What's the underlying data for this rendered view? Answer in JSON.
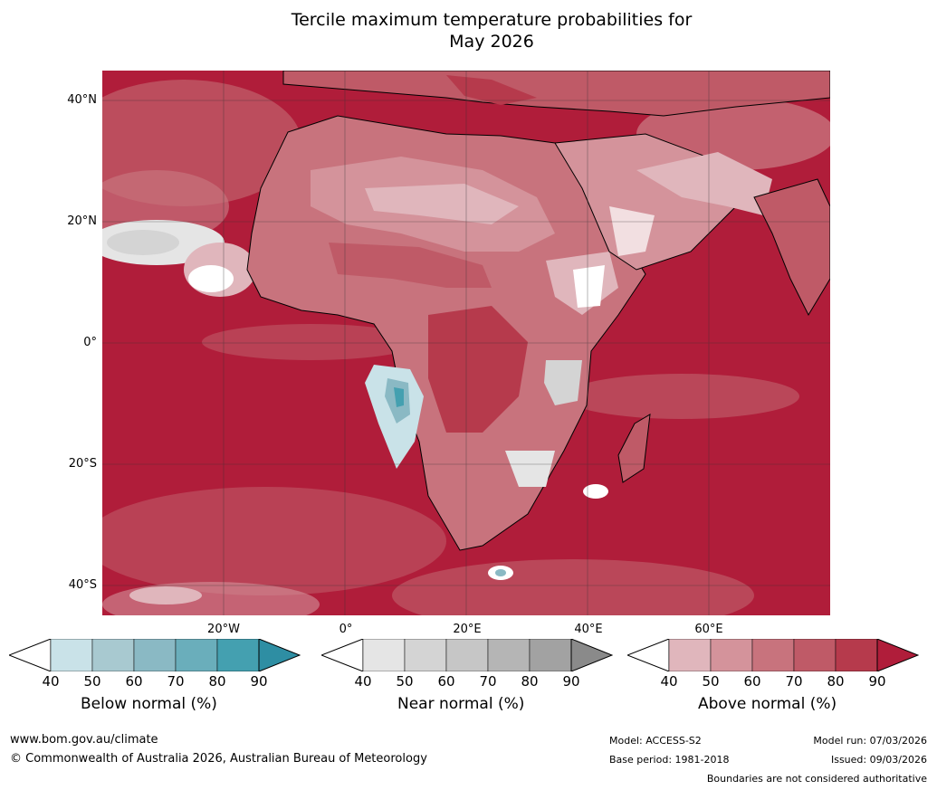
{
  "title": {
    "line1": "Tercile maximum temperature probabilities for",
    "line2": "May 2026"
  },
  "map": {
    "lat_labels": [
      "40°N",
      "20°N",
      "0°",
      "20°S",
      "40°S"
    ],
    "lon_labels": [
      "20°W",
      "0°",
      "20°E",
      "40°E",
      "60°E"
    ]
  },
  "legends": [
    {
      "title": "Below normal (%)",
      "ticks": [
        "40",
        "50",
        "60",
        "70",
        "80",
        "90"
      ],
      "colors": [
        "#ffffff",
        "#c9e2e8",
        "#a8c9d0",
        "#8ab9c4",
        "#6aaebb",
        "#44a0b0",
        "#2e8ea3"
      ]
    },
    {
      "title": "Near normal (%)",
      "ticks": [
        "40",
        "50",
        "60",
        "70",
        "80",
        "90"
      ],
      "colors": [
        "#ffffff",
        "#e5e5e5",
        "#d4d4d4",
        "#c6c6c6",
        "#b5b5b5",
        "#a2a2a2",
        "#8a8a8a"
      ]
    },
    {
      "title": "Above normal (%)",
      "ticks": [
        "40",
        "50",
        "60",
        "70",
        "80",
        "90"
      ],
      "colors": [
        "#ffffff",
        "#e0b6bc",
        "#d4939b",
        "#c8737d",
        "#bf5a67",
        "#b63a4c",
        "#b01d3a"
      ]
    }
  ],
  "footer": {
    "url": "www.bom.gov.au/climate",
    "copyright": "© Commonwealth of Australia 2026, Australian Bureau of Meteorology",
    "model": "Model: ACCESS-S2",
    "base_period": "Base period: 1981-2018",
    "model_run": "Model run: 07/03/2026",
    "issued": "Issued: 09/03/2026",
    "disclaimer": "Boundaries are not considered authoritative"
  }
}
